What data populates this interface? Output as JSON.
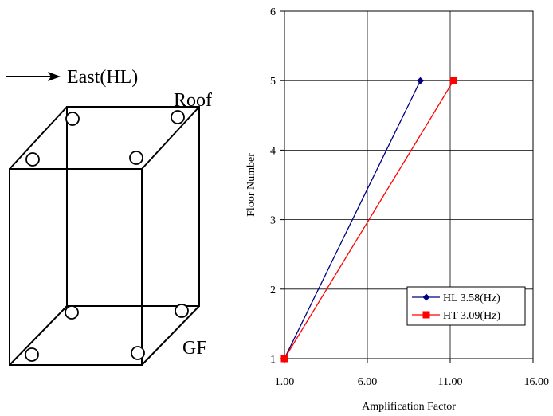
{
  "diagram": {
    "direction_label": "East(HL)",
    "roof_label": "Roof",
    "ground_label": "GF"
  },
  "chart_data": {
    "type": "line",
    "xlabel": "Amplification Factor",
    "ylabel": "Floor Number",
    "xlim": [
      1,
      16
    ],
    "ylim": [
      1,
      6
    ],
    "x_ticks": [
      "1.00",
      "6.00",
      "11.00",
      "16.00"
    ],
    "x_tick_values": [
      1,
      6,
      11,
      16
    ],
    "y_ticks": [
      "1",
      "2",
      "3",
      "4",
      "5",
      "6"
    ],
    "y_tick_values": [
      1,
      2,
      3,
      4,
      5,
      6
    ],
    "grid": true,
    "legend_position": "bottom-right",
    "series": [
      {
        "name": "HL 3.58(Hz)",
        "color": "#000080",
        "marker": "diamond",
        "points": [
          [
            1.0,
            1
          ],
          [
            9.2,
            5
          ]
        ]
      },
      {
        "name": "HT 3.09(Hz)",
        "color": "#ff0000",
        "marker": "square",
        "points": [
          [
            1.0,
            1
          ],
          [
            11.2,
            5
          ]
        ]
      }
    ]
  }
}
